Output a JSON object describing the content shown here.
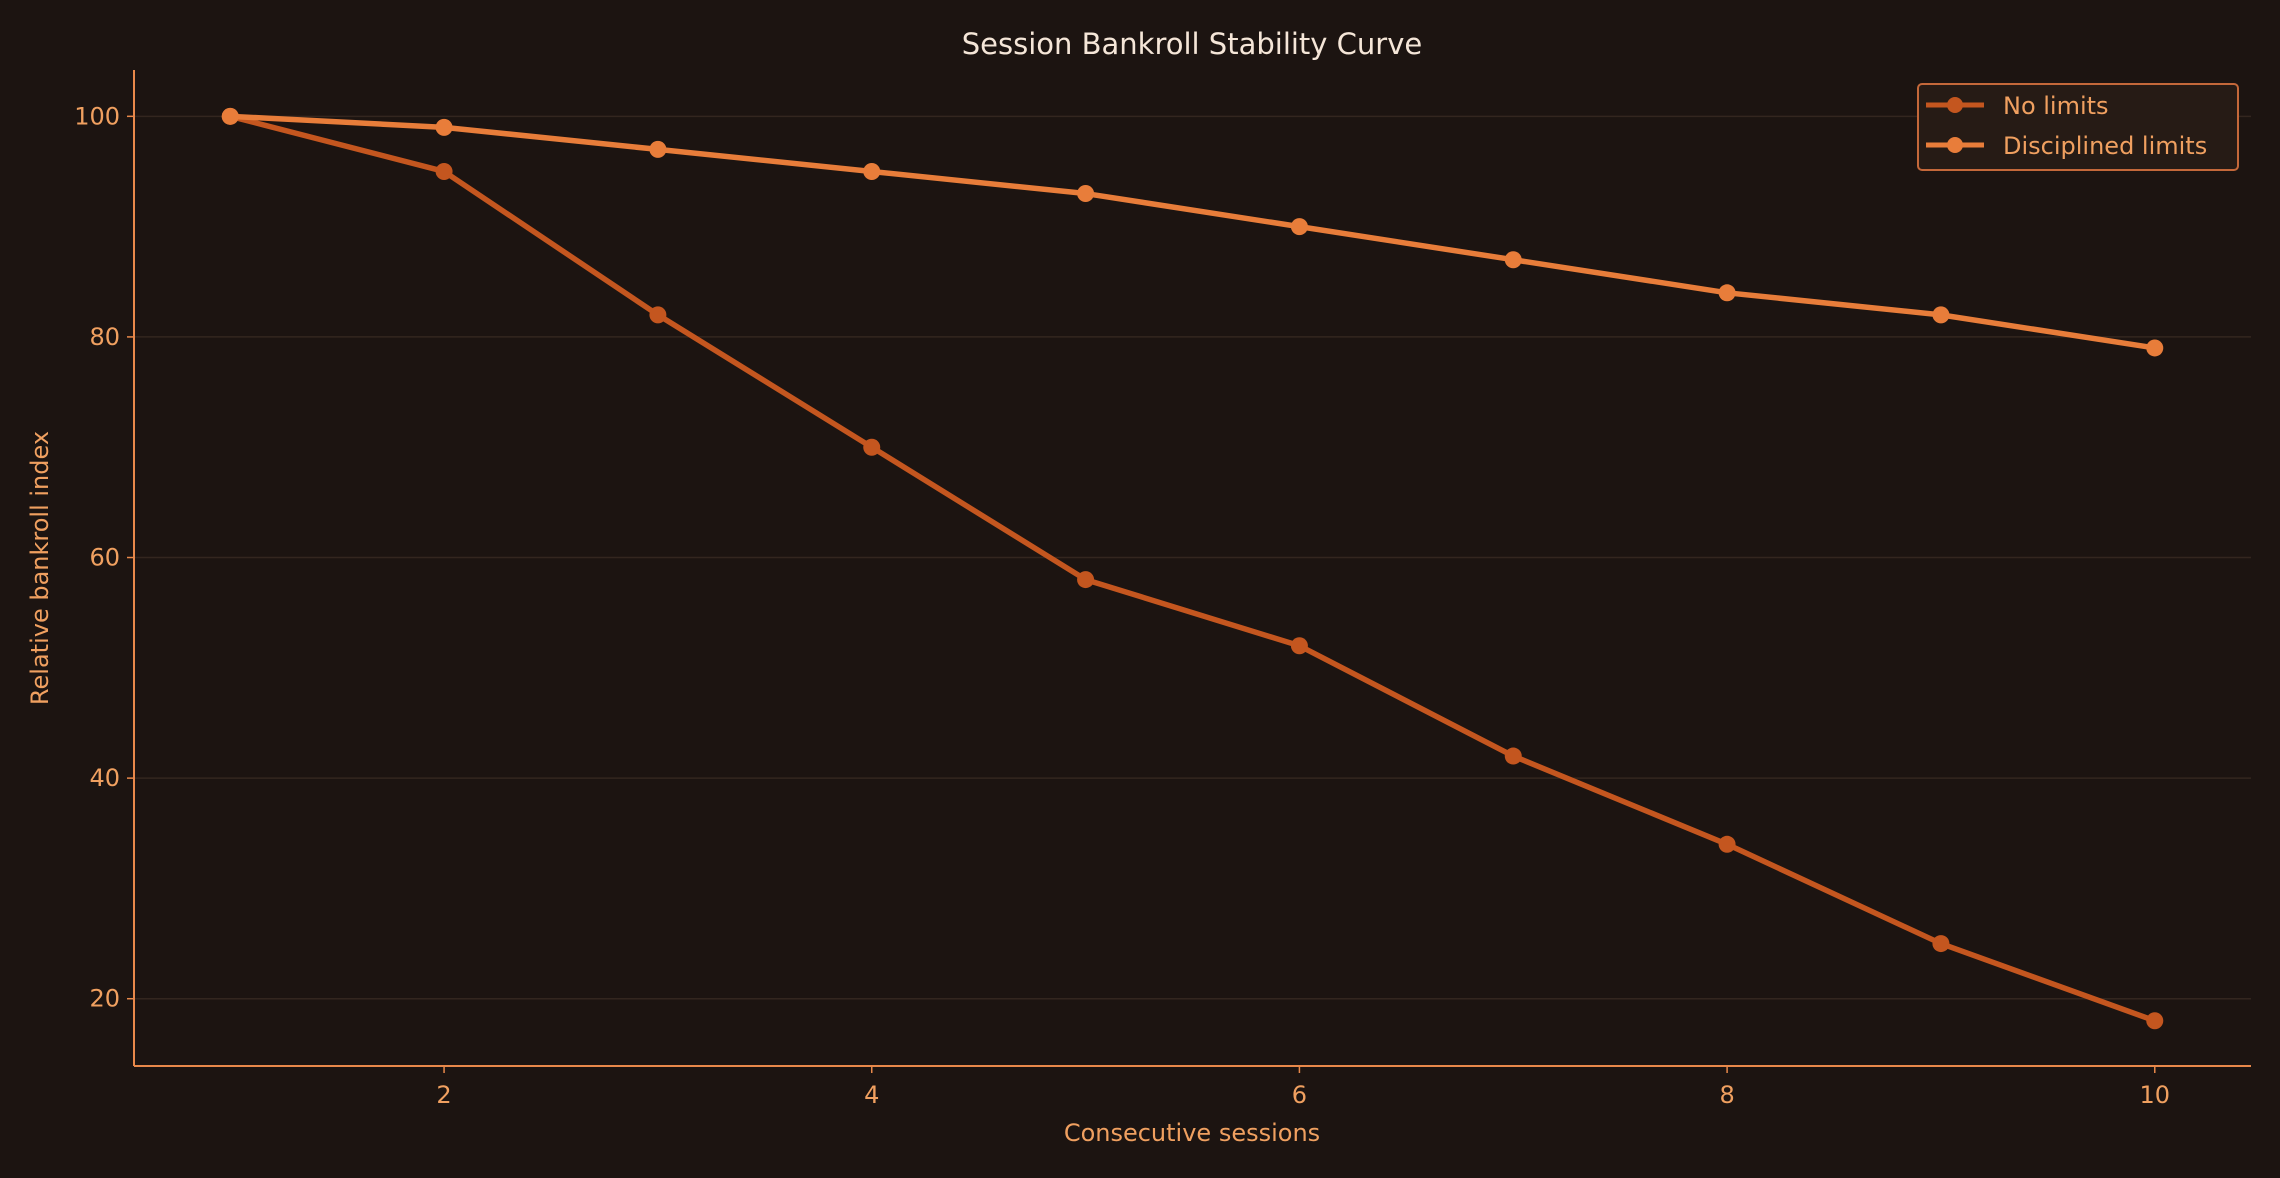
{
  "chart_data": {
    "type": "line",
    "title": "Session Bankroll Stability Curve",
    "xlabel": "Consecutive sessions",
    "ylabel": "Relative bankroll index",
    "x": [
      1,
      2,
      3,
      4,
      5,
      6,
      7,
      8,
      9,
      10
    ],
    "xlim": [
      0.55,
      10.45
    ],
    "ylim": [
      13.9,
      104.2
    ],
    "xticks": [
      2,
      4,
      6,
      8,
      10
    ],
    "yticks": [
      20,
      40,
      60,
      80,
      100
    ],
    "grid": "horizontal",
    "legend_position": "top-right",
    "series": [
      {
        "name": "No limits",
        "color": "#c4561f",
        "values": [
          100,
          95,
          82,
          70,
          58,
          52,
          42,
          34,
          25,
          18
        ]
      },
      {
        "name": "Disciplined limits",
        "color": "#e87d3a",
        "values": [
          100,
          99,
          97,
          95,
          93,
          90,
          87,
          84,
          82,
          79
        ]
      }
    ],
    "colors": {
      "background": "#1c1411",
      "axis": "#e8884a",
      "text": "#f0a060",
      "title": "#f5e6d8",
      "grid": "#33261f"
    }
  }
}
